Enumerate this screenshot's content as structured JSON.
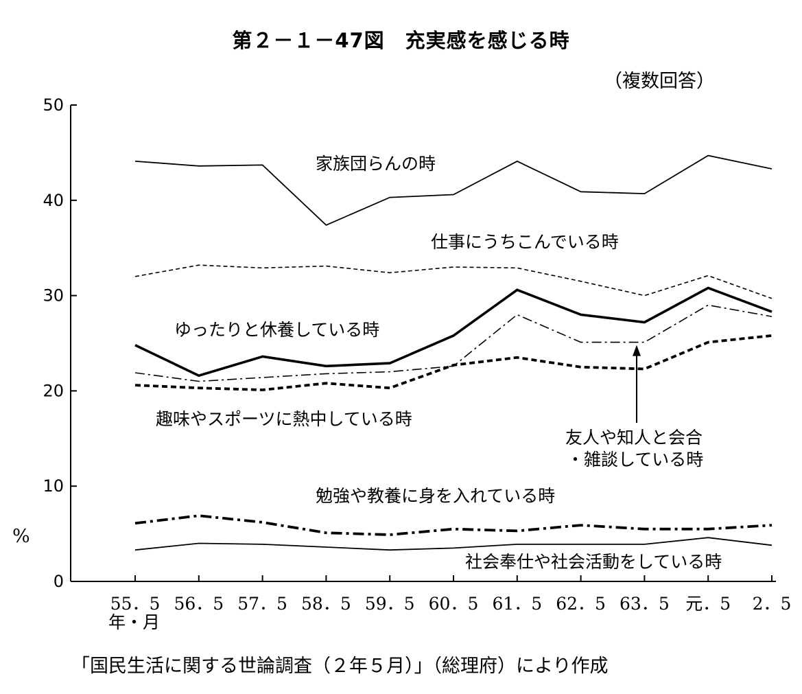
{
  "header": {
    "title": "第２－１－47図　充実感を感じる時",
    "subtitle": "（複数回答）"
  },
  "axis": {
    "unit": "%",
    "period_label": "年・月"
  },
  "footer": {
    "source": "「国民生活に関する世論調査（２年５月）」（総理府）により作成"
  },
  "chart_data": {
    "type": "line",
    "title": "第２－１－47図　充実感を感じる時",
    "subtitle": "（複数回答）",
    "xlabel": "年・月",
    "ylabel": "%",
    "ylim": [
      0,
      50
    ],
    "yticks": [
      "0",
      "10",
      "20",
      "30",
      "40",
      "50"
    ],
    "categories": [
      "55．5",
      "56．5",
      "57．5",
      "58．5",
      "59．5",
      "60．5",
      "61．5",
      "62．5",
      "63．5",
      "元．5",
      "2．5"
    ],
    "grid": false,
    "legend": "labels placed next to lines",
    "series": [
      {
        "name": "家族団らんの時",
        "style": "solid-thin",
        "values": [
          44.1,
          43.6,
          43.7,
          37.4,
          40.3,
          40.6,
          44.1,
          40.9,
          40.7,
          44.7,
          43.3
        ]
      },
      {
        "name": "仕事にうちこんでいる時",
        "style": "dashed-thin",
        "values": [
          32.0,
          33.2,
          32.9,
          33.1,
          32.4,
          33.0,
          32.9,
          31.5,
          30.0,
          32.1,
          29.7
        ]
      },
      {
        "name": "ゆったりと休養している時",
        "style": "solid-thick",
        "values": [
          24.8,
          21.6,
          23.6,
          22.6,
          22.9,
          25.8,
          30.6,
          28.0,
          27.2,
          30.8,
          28.3
        ]
      },
      {
        "name": "友人や知人と会合・雑談している時",
        "style": "dashdot-thin",
        "values": [
          21.9,
          21.0,
          21.4,
          21.8,
          22.0,
          22.6,
          28.0,
          25.1,
          25.1,
          29.0,
          27.8
        ]
      },
      {
        "name": "趣味やスポーツに熱中している時",
        "style": "dashed-thick",
        "values": [
          20.6,
          20.3,
          20.1,
          20.8,
          20.3,
          22.7,
          23.5,
          22.5,
          22.3,
          25.1,
          25.8
        ]
      },
      {
        "name": "勉強や教養に身を入れている時",
        "style": "dashdot-thick",
        "values": [
          6.1,
          6.9,
          6.2,
          5.1,
          4.9,
          5.5,
          5.3,
          5.9,
          5.5,
          5.5,
          5.9
        ]
      },
      {
        "name": "社会奉仕や社会活動をしている時",
        "style": "solid-thin",
        "values": [
          3.3,
          4.0,
          3.9,
          3.6,
          3.3,
          3.5,
          3.9,
          3.9,
          3.9,
          4.6,
          3.8
        ]
      }
    ]
  }
}
